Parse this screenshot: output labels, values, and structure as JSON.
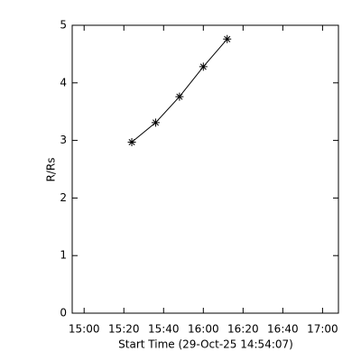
{
  "chart_data": {
    "type": "line",
    "x_label": "Start Time (29-Oct-25 14:54:07)",
    "y_label": "R/Rs",
    "x": [
      "15:24",
      "15:36",
      "15:48",
      "16:00",
      "16:12"
    ],
    "series": [
      {
        "color": "#000000",
        "values": [
          2.97,
          3.31,
          3.76,
          4.28,
          4.76
        ]
      }
    ],
    "xlim": [
      "14:54",
      "17:08"
    ],
    "xticks": [
      "15:00",
      "15:20",
      "15:40",
      "16:00",
      "16:20",
      "16:40",
      "17:00"
    ],
    "ylim": [
      0,
      5
    ],
    "yticks": [
      0,
      1,
      2,
      3,
      4,
      5
    ],
    "grid": false
  }
}
